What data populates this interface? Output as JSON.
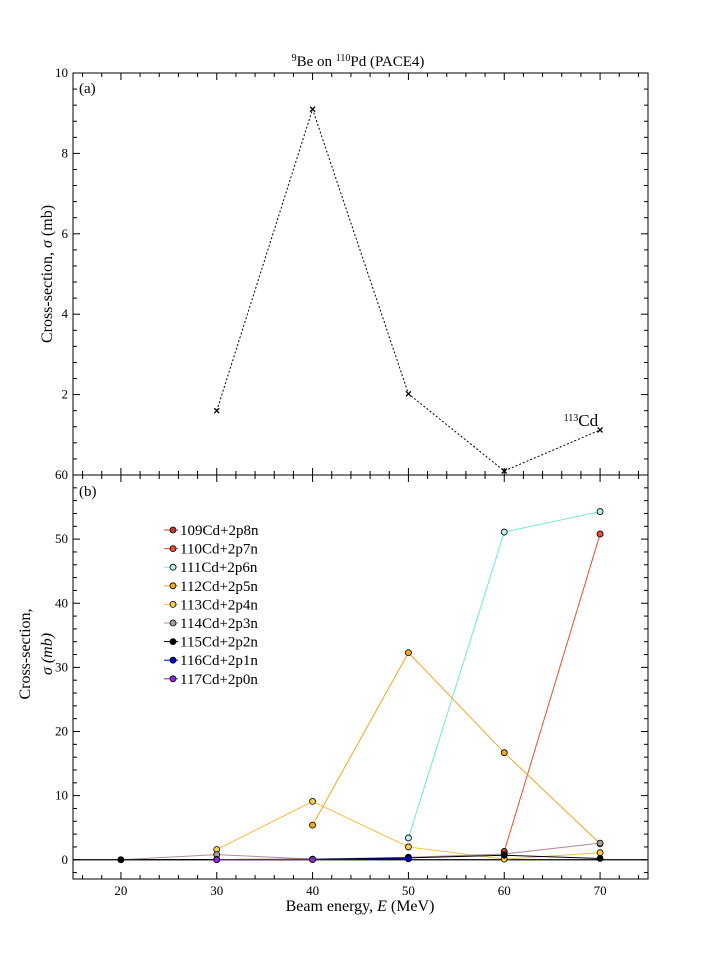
{
  "figure": {
    "title": "9Be on 110Pd (PACE4)",
    "title_parts": {
      "mass_a": "9",
      "elem_a": "Be",
      "joiner": " on ",
      "mass_b": "110",
      "elem_b": "Pd",
      "suffix": " (PACE4)"
    },
    "xlabel": "Beam energy, E (MeV)",
    "xlabel_parts": {
      "pre": "Beam energy, ",
      "var": "E",
      "post": " (MeV)"
    }
  },
  "chart_data": [
    {
      "type": "line",
      "panel_label": "(a)",
      "ylabel": "Cross-section, σ (mb)",
      "ylabel_parts": {
        "pre": "Cross-section, ",
        "var": "σ",
        "post": " (mb)"
      },
      "xlim": [
        15,
        75
      ],
      "ylim": [
        0,
        10
      ],
      "x_ticks": [
        20,
        30,
        40,
        50,
        60,
        70
      ],
      "y_ticks": [
        2,
        4,
        6,
        8,
        10
      ],
      "line_style": "dotted",
      "marker": "x",
      "series": [
        {
          "x": [
            30,
            40,
            50,
            60,
            70
          ],
          "y": [
            1.6,
            9.1,
            2.02,
            0.1,
            1.12
          ],
          "color": "#000000"
        }
      ],
      "annotation": {
        "text": "113Cd",
        "mass": "113",
        "elem": "Cd",
        "x": 70,
        "y": 1.12
      }
    },
    {
      "type": "line",
      "panel_label": "(b)",
      "ylabel_line1": "Cross-section,",
      "ylabel_line2": "σ (mb)",
      "xlim": [
        15,
        75
      ],
      "ylim": [
        -3,
        60
      ],
      "x_ticks": [
        20,
        30,
        40,
        50,
        60,
        70
      ],
      "y_ticks": [
        0,
        10,
        20,
        30,
        40,
        50,
        60
      ],
      "zero_line": true,
      "marker": "circle",
      "legend_position": "upper-left",
      "series": [
        {
          "name": "109Cd+2p8n",
          "color": "#d03c2c",
          "marker_fill": "#c0392b",
          "x": [
            70
          ],
          "y": [
            50.8
          ]
        },
        {
          "name": "110Cd+2p7n",
          "color": "#e8502c",
          "marker_fill": "#e8502c",
          "x": [
            60,
            70
          ],
          "y": [
            1.3,
            50.8
          ]
        },
        {
          "name": "111Cd+2p6n",
          "color": "#70e8d8",
          "marker_fill": "#b8f4ea",
          "x": [
            50,
            60,
            70
          ],
          "y": [
            3.4,
            51.1,
            54.3
          ]
        },
        {
          "name": "112Cd+2p5n",
          "color": "#f5a623",
          "marker_fill": "#f5a623",
          "x": [
            40,
            50,
            60,
            70
          ],
          "y": [
            5.4,
            32.3,
            16.7,
            2.5
          ]
        },
        {
          "name": "113Cd+2p4n",
          "color": "#f0c040",
          "marker_fill": "#f5d048",
          "x": [
            30,
            40,
            50,
            60,
            70
          ],
          "y": [
            1.6,
            9.1,
            2.0,
            0.1,
            1.1
          ]
        },
        {
          "name": "114Cd+2p3n",
          "color": "#b09090",
          "marker_fill": "#a0a0a0",
          "x": [
            20,
            30,
            40,
            50,
            60,
            70
          ],
          "y": [
            0.0,
            0.8,
            0.1,
            0.4,
            0.9,
            2.6
          ]
        },
        {
          "name": "115Cd+2p2n",
          "color": "#000000",
          "marker_fill": "#000000",
          "x": [
            20,
            30,
            40,
            50,
            60,
            70
          ],
          "y": [
            0.0,
            0.05,
            0.08,
            0.3,
            0.7,
            0.2
          ]
        },
        {
          "name": "116Cd+2p1n",
          "color": "#0000cc",
          "marker_fill": "#0000cc",
          "x": [
            30,
            40,
            50
          ],
          "y": [
            0.02,
            0.05,
            0.15
          ]
        },
        {
          "name": "117Cd+2p0n",
          "color": "#7b22cc",
          "marker_fill": "#8a2be2",
          "x": [
            30,
            40
          ],
          "y": [
            0.0,
            0.02
          ]
        }
      ]
    }
  ]
}
